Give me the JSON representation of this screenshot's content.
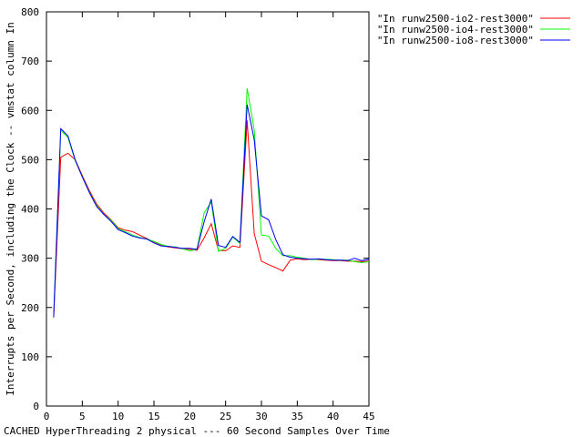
{
  "chart_data": {
    "type": "line",
    "title": "",
    "xlabel": "CACHED HyperThreading 2 physical --- 60 Second Samples Over Time",
    "ylabel": "Interrupts per Second, including the Clock -- vmstat column In",
    "xlim": [
      0,
      45
    ],
    "ylim": [
      0,
      800
    ],
    "xticks": [
      0,
      5,
      10,
      15,
      20,
      25,
      30,
      35,
      40,
      45
    ],
    "yticks": [
      0,
      100,
      200,
      300,
      400,
      500,
      600,
      700,
      800
    ],
    "grid": false,
    "legend_position": "top-right",
    "series": [
      {
        "name": "\"In runw2500-io2-rest3000\"",
        "color": "#ff0000",
        "x": [
          1,
          2,
          3,
          4,
          5,
          6,
          7,
          8,
          9,
          10,
          11,
          12,
          13,
          14,
          15,
          16,
          17,
          18,
          19,
          20,
          21,
          22,
          23,
          24,
          25,
          26,
          27,
          28,
          29,
          30,
          31,
          32,
          33,
          34,
          35,
          36,
          37,
          38,
          39,
          40,
          41,
          42,
          43,
          44,
          45
        ],
        "y": [
          180,
          505,
          513,
          500,
          468,
          437,
          410,
          392,
          378,
          362,
          357,
          354,
          347,
          340,
          333,
          327,
          323,
          321,
          319,
          318,
          316,
          341,
          370,
          316,
          315,
          325,
          322,
          580,
          350,
          294,
          287,
          281,
          274,
          296,
          299,
          297,
          298,
          297,
          296,
          295,
          295,
          294,
          294,
          293,
          294
        ]
      },
      {
        "name": "\"In runw2500-io4-rest3000\"",
        "color": "#00ff00",
        "x": [
          1,
          2,
          3,
          4,
          5,
          6,
          7,
          8,
          9,
          10,
          11,
          12,
          13,
          14,
          15,
          16,
          17,
          18,
          19,
          20,
          21,
          22,
          23,
          24,
          25,
          26,
          27,
          28,
          29,
          30,
          31,
          32,
          33,
          34,
          35,
          36,
          37,
          38,
          39,
          40,
          41,
          42,
          43,
          44,
          45
        ],
        "y": [
          185,
          560,
          545,
          498,
          466,
          434,
          407,
          389,
          377,
          360,
          354,
          347,
          342,
          339,
          334,
          328,
          324,
          323,
          319,
          315,
          318,
          392,
          414,
          314,
          320,
          343,
          330,
          645,
          560,
          347,
          345,
          320,
          305,
          305,
          302,
          300,
          297,
          298,
          298,
          297,
          296,
          296,
          293,
          291,
          293
        ]
      },
      {
        "name": "\"In runw2500-io8-rest3000\"",
        "color": "#0000ff",
        "x": [
          1,
          2,
          3,
          4,
          5,
          6,
          7,
          8,
          9,
          10,
          11,
          12,
          13,
          14,
          15,
          16,
          17,
          18,
          19,
          20,
          21,
          22,
          23,
          24,
          25,
          26,
          27,
          28,
          29,
          30,
          31,
          32,
          33,
          34,
          35,
          36,
          37,
          38,
          39,
          40,
          41,
          42,
          43,
          44,
          45
        ],
        "y": [
          180,
          563,
          548,
          500,
          465,
          433,
          405,
          389,
          375,
          358,
          352,
          345,
          341,
          339,
          331,
          325,
          324,
          322,
          320,
          320,
          318,
          374,
          420,
          326,
          322,
          344,
          332,
          612,
          540,
          386,
          378,
          338,
          307,
          302,
          300,
          299,
          298,
          299,
          297,
          296,
          296,
          295,
          300,
          295,
          298
        ]
      }
    ]
  }
}
